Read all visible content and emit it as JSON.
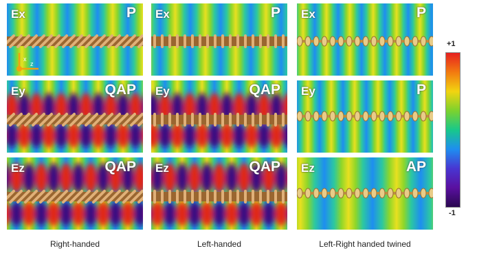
{
  "columns": [
    {
      "caption": "Right-handed",
      "rows": [
        {
          "field": "Ex",
          "mode": "P"
        },
        {
          "field": "Ey",
          "mode": "QAP"
        },
        {
          "field": "Ez",
          "mode": "QAP"
        }
      ]
    },
    {
      "caption": "Left-handed",
      "rows": [
        {
          "field": "Ex",
          "mode": "P"
        },
        {
          "field": "Ey",
          "mode": "QAP"
        },
        {
          "field": "Ez",
          "mode": "QAP"
        }
      ]
    },
    {
      "caption": "Left-Right handed twined",
      "rows": [
        {
          "field": "Ex",
          "mode": "P"
        },
        {
          "field": "Ey",
          "mode": "P"
        },
        {
          "field": "Ez",
          "mode": "AP"
        }
      ]
    }
  ],
  "axes": {
    "x": "x",
    "z": "z"
  },
  "colorbar": {
    "max": "+1",
    "min": "-1"
  }
}
